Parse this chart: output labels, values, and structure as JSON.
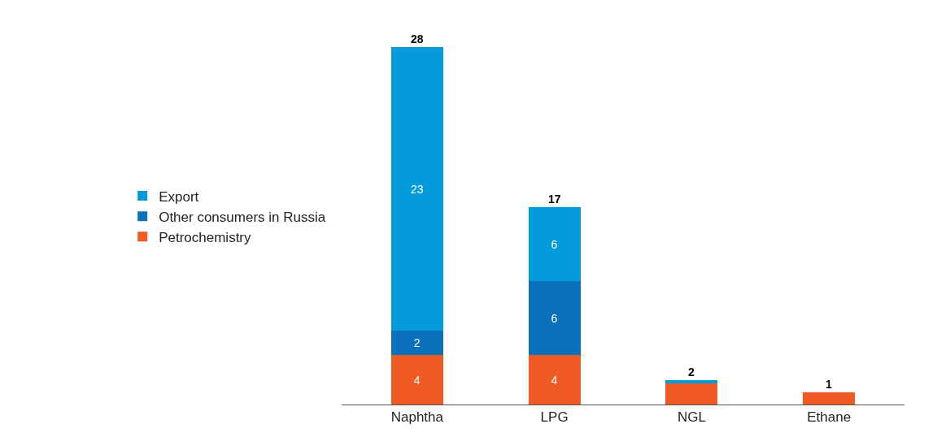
{
  "chart_data": {
    "type": "bar",
    "stacked": true,
    "categories": [
      "Naphtha",
      "LPG",
      "NGL",
      "Ethane"
    ],
    "series": [
      {
        "name": "Petrochemistry",
        "color": "#f05a23",
        "values": [
          4,
          4,
          1.7,
          1
        ],
        "value_labels": [
          "4",
          "4",
          null,
          null
        ]
      },
      {
        "name": "Other consumers in Russia",
        "color": "#0a72bb",
        "values": [
          2,
          6,
          null,
          null
        ],
        "value_labels": [
          "2",
          "6",
          null,
          null
        ]
      },
      {
        "name": "Export",
        "color": "#039bdb",
        "values": [
          23,
          6,
          0.3,
          null
        ],
        "value_labels": [
          "23",
          "6",
          null,
          null
        ]
      }
    ],
    "totals": [
      "28",
      "17",
      "2",
      "1"
    ],
    "legend": "left"
  }
}
